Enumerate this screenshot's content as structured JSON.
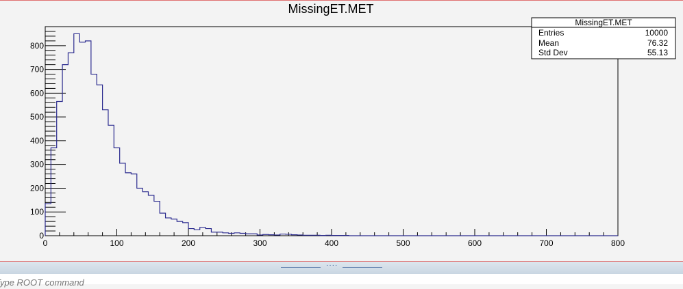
{
  "chart_data": {
    "type": "histogram",
    "title": "MissingET.MET",
    "xlim": [
      0,
      800
    ],
    "ylim": [
      0,
      880
    ],
    "bin_width": 8,
    "x_ticks": [
      0,
      100,
      200,
      300,
      400,
      500,
      600,
      700,
      800
    ],
    "y_ticks": [
      0,
      100,
      200,
      300,
      400,
      500,
      600,
      700,
      800
    ],
    "grid": false,
    "legend": "none",
    "line_color": "#2b2b8f",
    "values": [
      135,
      370,
      565,
      720,
      770,
      850,
      815,
      820,
      680,
      635,
      530,
      465,
      370,
      305,
      265,
      260,
      200,
      185,
      170,
      145,
      95,
      75,
      70,
      60,
      55,
      30,
      25,
      35,
      30,
      15,
      15,
      12,
      10,
      12,
      10,
      8,
      8,
      3,
      5,
      4,
      3,
      7,
      6,
      4,
      3,
      2,
      2,
      2,
      1,
      2,
      1,
      1,
      1,
      0,
      0,
      0,
      0,
      0,
      0,
      0,
      0,
      0,
      0,
      0,
      0,
      0,
      0,
      0,
      0,
      0,
      0,
      0,
      0,
      0,
      0,
      0,
      0,
      0,
      0,
      0,
      0,
      0,
      0,
      0,
      0,
      0,
      0,
      0,
      0,
      0,
      0,
      0,
      0,
      0,
      0,
      0,
      0,
      0,
      0,
      0
    ],
    "stats": {
      "title": "MissingET.MET",
      "rows": [
        {
          "label": "Entries",
          "value": "10000"
        },
        {
          "label": "Mean",
          "value": "76.32"
        },
        {
          "label": "Std Dev",
          "value": "55.13"
        }
      ]
    }
  },
  "command": {
    "placeholder": "Type ROOT command"
  }
}
